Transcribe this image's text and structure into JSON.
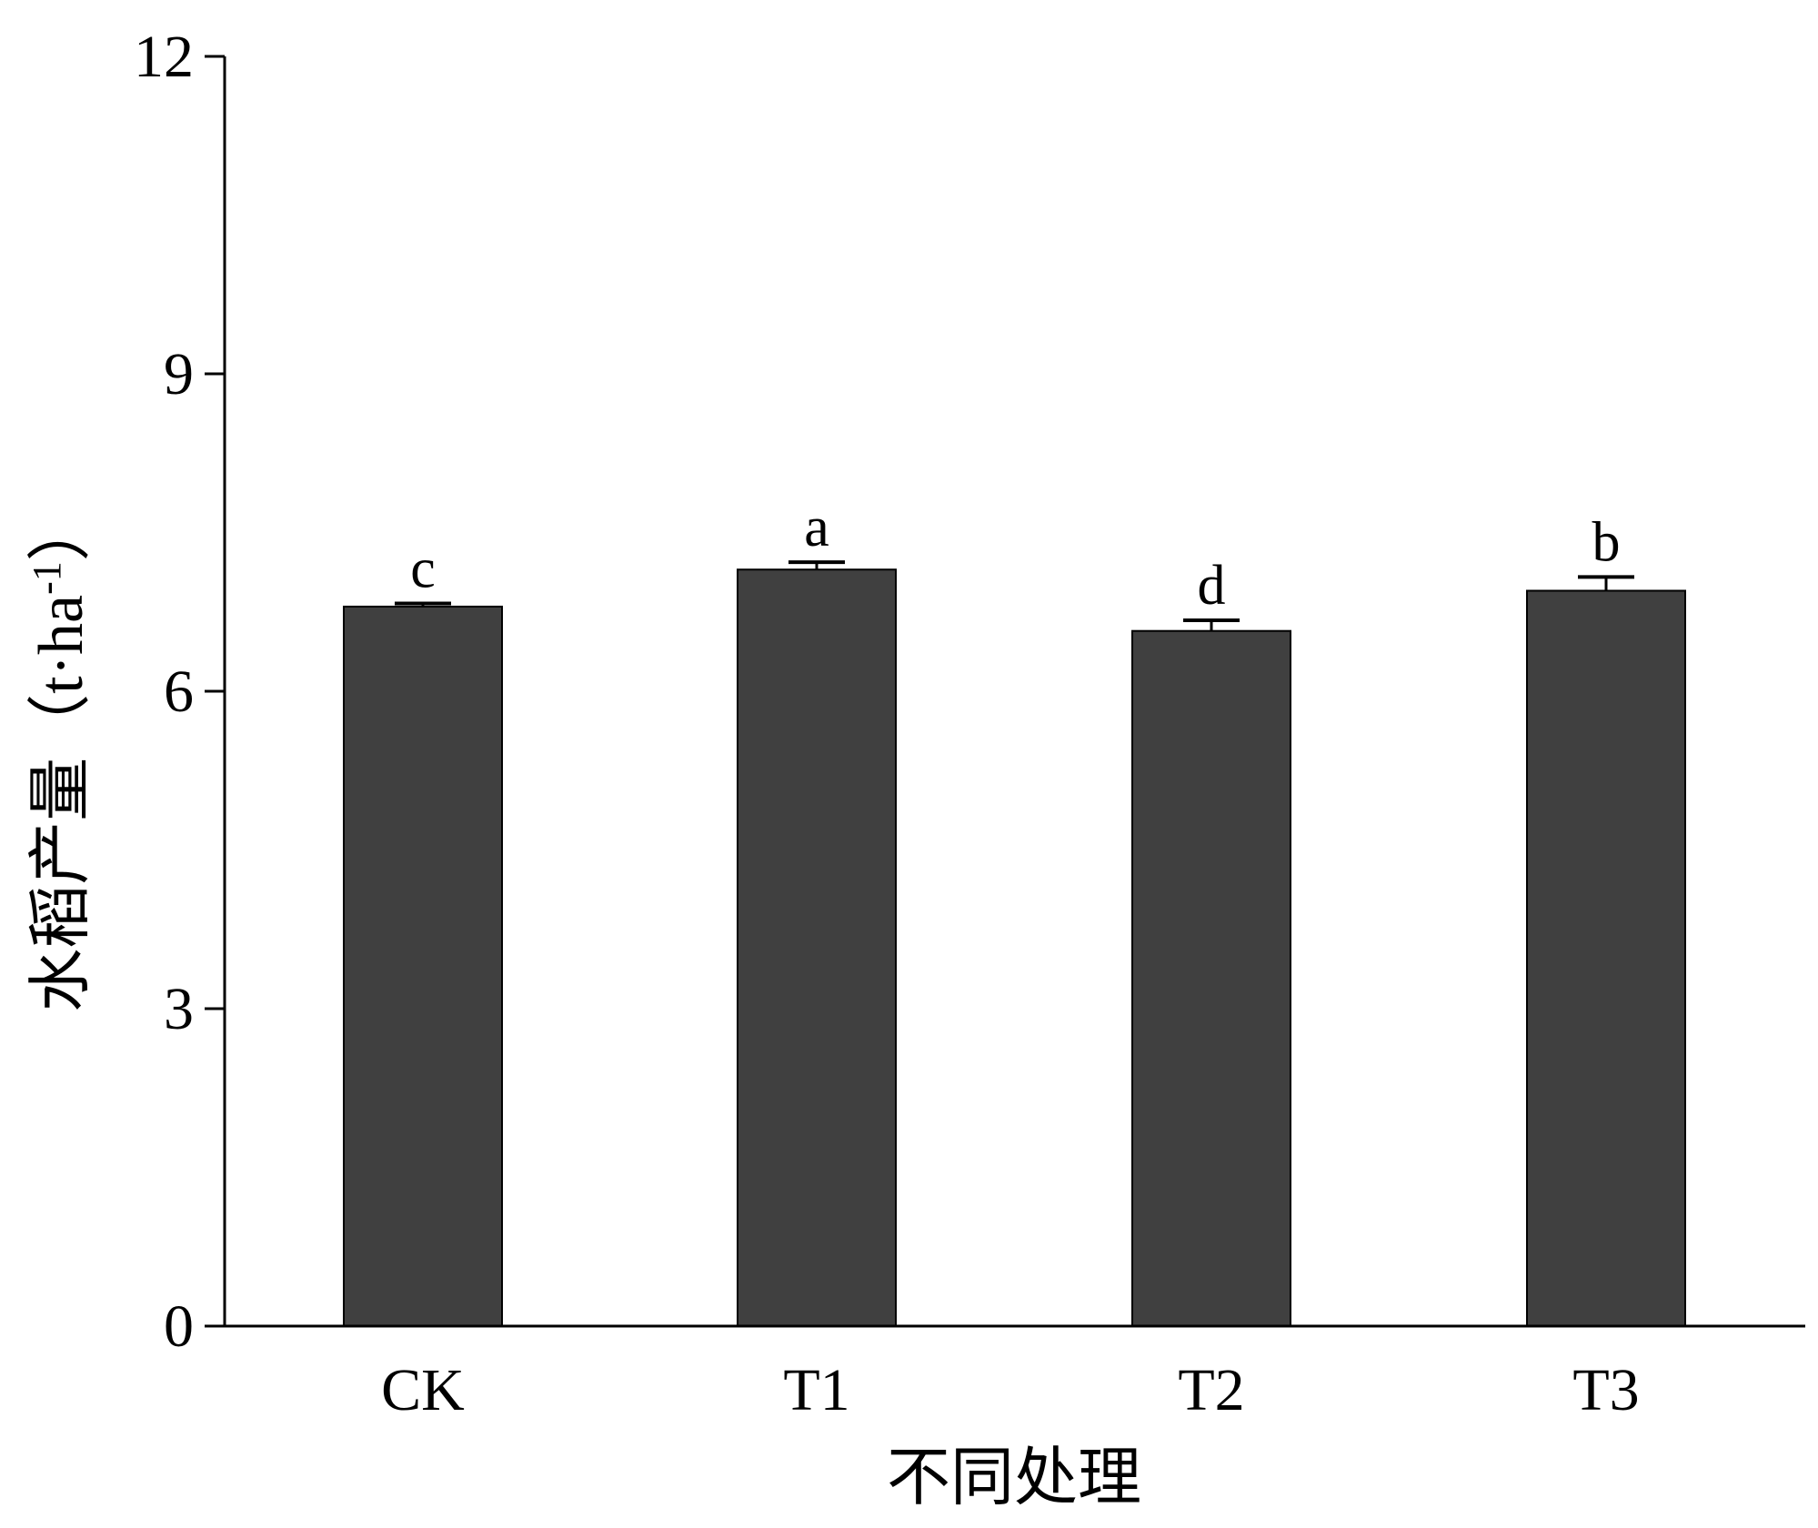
{
  "chart_data": {
    "type": "bar",
    "categories": [
      "CK",
      "T1",
      "T2",
      "T3"
    ],
    "values": [
      6.8,
      7.15,
      6.57,
      6.95
    ],
    "errors": [
      0.03,
      0.07,
      0.1,
      0.13
    ],
    "significance": [
      "c",
      "a",
      "d",
      "b"
    ],
    "xlabel": "不同处理",
    "ylabel_main": "水稻产量（t·ha",
    "ylabel_sup": "-1",
    "ylabel_close": "）",
    "ylim": [
      0,
      12
    ],
    "yticks": [
      0,
      3,
      6,
      9,
      12
    ],
    "grid": false,
    "bar_color": "#404040",
    "axis_color": "#000000"
  }
}
